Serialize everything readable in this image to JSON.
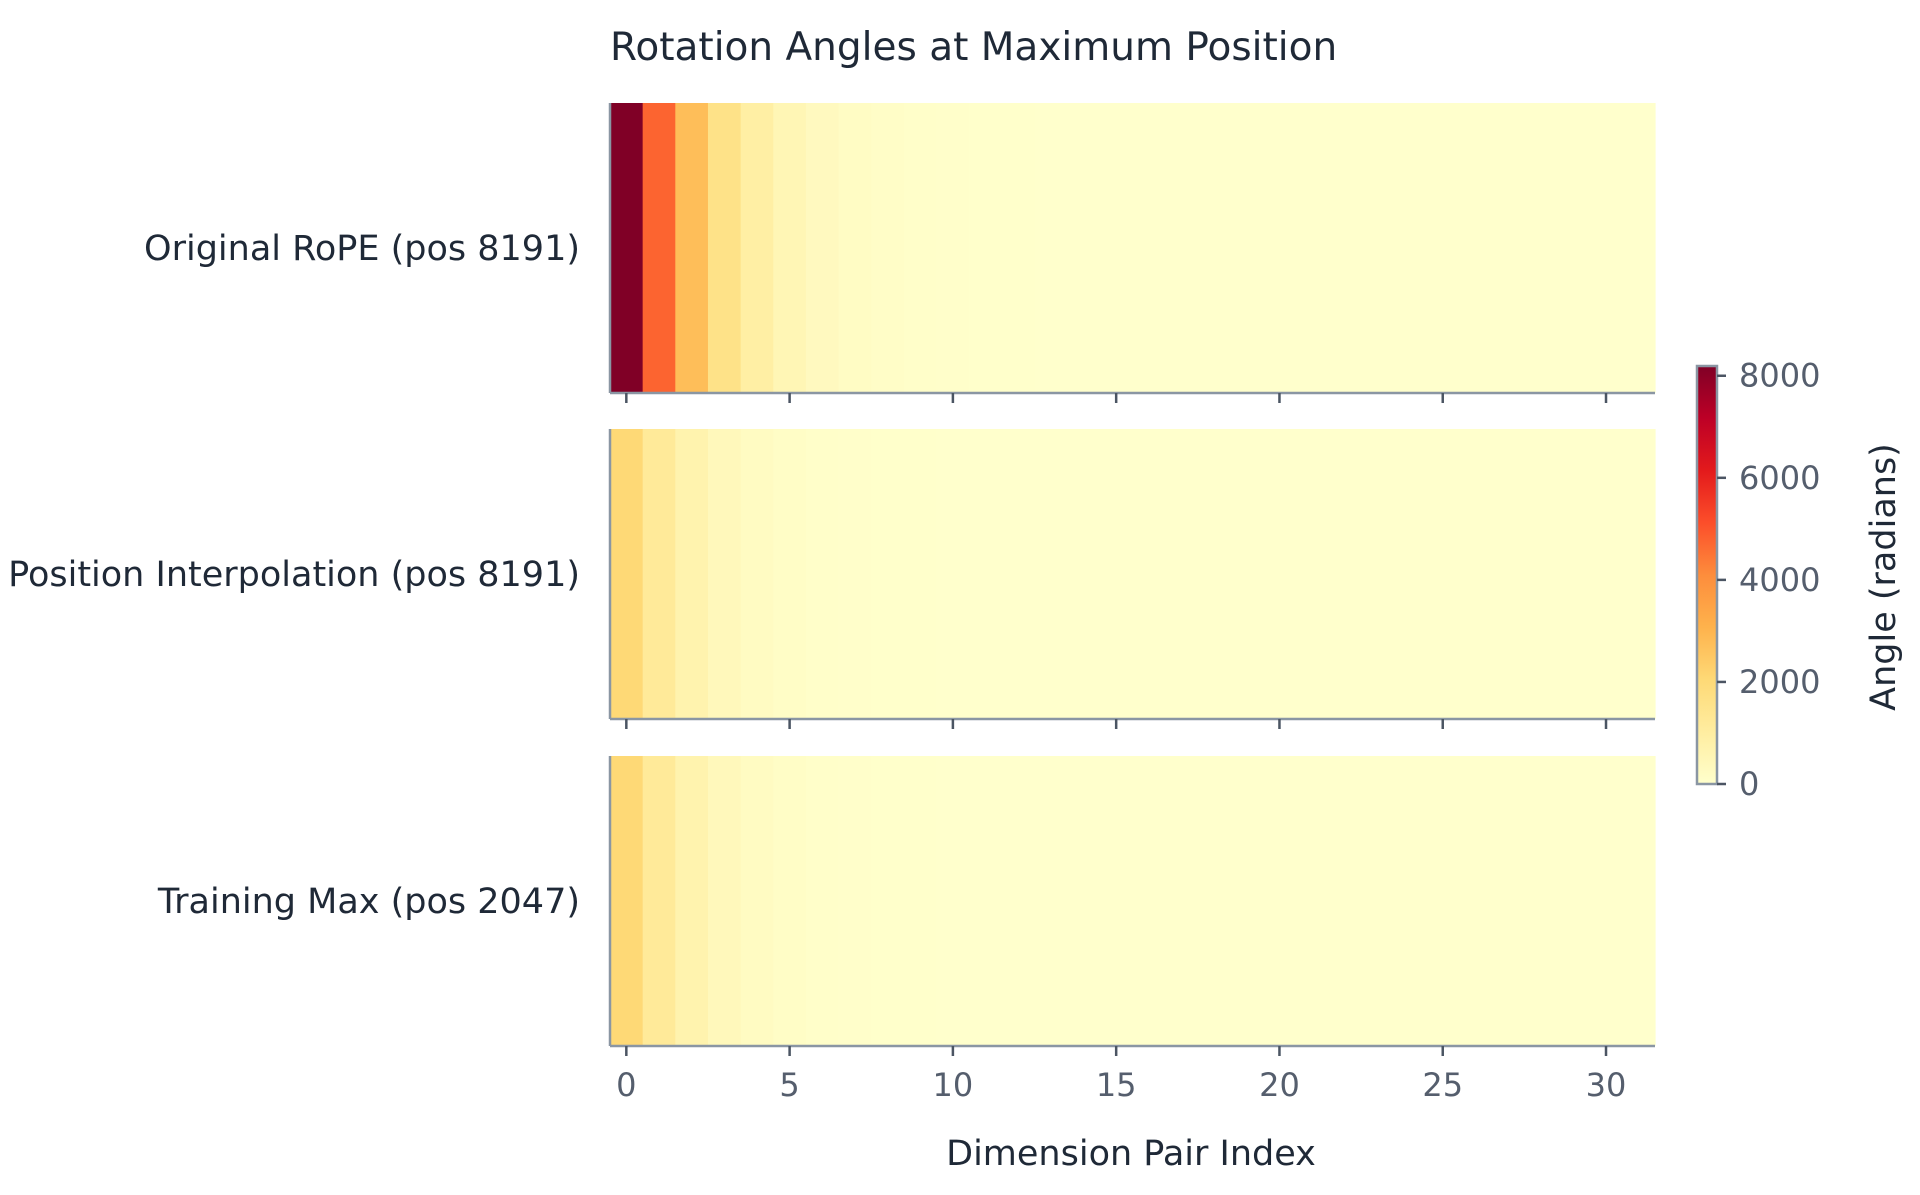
{
  "chart_data": {
    "type": "heatmap",
    "title": "Rotation Angles at Maximum Position",
    "xlabel": "Dimension Pair Index",
    "rows": [
      "Original RoPE (pos 8191)",
      "Position Interpolation (pos 8191)",
      "Training Max (pos 2047)"
    ],
    "x": [
      0,
      1,
      2,
      3,
      4,
      5,
      6,
      7,
      8,
      9,
      10,
      11,
      12,
      13,
      14,
      15,
      16,
      17,
      18,
      19,
      20,
      21,
      22,
      23,
      24,
      25,
      26,
      27,
      28,
      29,
      30,
      31
    ],
    "xticks": [
      0,
      5,
      10,
      15,
      20,
      25,
      30
    ],
    "values": [
      [
        8191,
        4755,
        2761,
        1603,
        931,
        540,
        314,
        182,
        106,
        61,
        36,
        21,
        12,
        7,
        4,
        2.4,
        1.4,
        0.8,
        0.5,
        0.3,
        0.2,
        0.1,
        0.05,
        0.03,
        0.02,
        0.01,
        0.006,
        0.003,
        0.002,
        0.001,
        0.001,
        0.0005
      ],
      [
        2047,
        1189,
        690,
        401,
        233,
        135,
        78,
        45,
        26,
        15,
        9,
        5,
        3,
        1.8,
        1.0,
        0.6,
        0.35,
        0.2,
        0.12,
        0.07,
        0.04,
        0.02,
        0.013,
        0.008,
        0.004,
        0.003,
        0.0015,
        0.0009,
        0.0005,
        0.0003,
        0.0002,
        0.0001
      ],
      [
        2047,
        1189,
        690,
        401,
        233,
        135,
        78,
        45,
        26,
        15,
        9,
        5,
        3,
        1.8,
        1.0,
        0.6,
        0.35,
        0.2,
        0.12,
        0.07,
        0.04,
        0.02,
        0.013,
        0.008,
        0.004,
        0.003,
        0.0015,
        0.0009,
        0.0005,
        0.0003,
        0.0002,
        0.0001
      ]
    ],
    "colorbar": {
      "label": "Angle (radians)",
      "range": [
        0,
        8191
      ],
      "ticks": [
        0,
        2000,
        4000,
        6000,
        8000
      ],
      "colormap": "YlOrRd",
      "stops": [
        "#ffffcc",
        "#ffeda0",
        "#fed976",
        "#feb24c",
        "#fd8d3c",
        "#fc4e2a",
        "#e31a1c",
        "#bd0026",
        "#800026"
      ]
    },
    "axis_color": "#8a96a3"
  }
}
